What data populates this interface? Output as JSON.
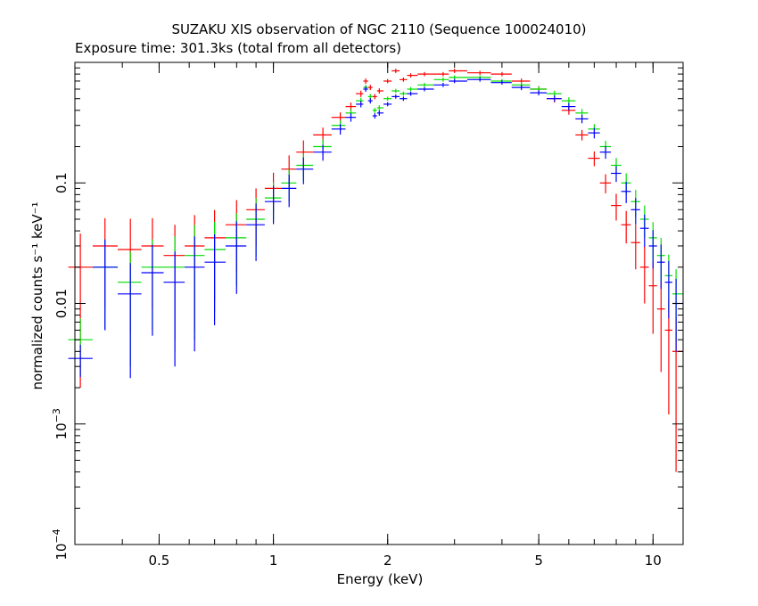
{
  "chart_data": {
    "type": "scatter",
    "title": "SUZAKU XIS observation of NGC 2110 (Sequence 100024010)",
    "subtitle": "Exposure time: 301.3ks (total from all detectors)",
    "xlabel": "Energy (keV)",
    "ylabel": "normalized counts s⁻¹ keV⁻¹",
    "xscale": "log",
    "yscale": "log",
    "xlim": [
      0.3,
      12
    ],
    "ylim": [
      0.0001,
      1
    ],
    "grid": false,
    "x_ticks": [
      {
        "value": 0.5,
        "label": "0.5"
      },
      {
        "value": 1,
        "label": "1"
      },
      {
        "value": 2,
        "label": "2"
      },
      {
        "value": 5,
        "label": "5"
      },
      {
        "value": 10,
        "label": "10"
      }
    ],
    "y_ticks": [
      {
        "value": 0.0001,
        "base": "10",
        "exp": "−4"
      },
      {
        "value": 0.001,
        "base": "10",
        "exp": "−3"
      },
      {
        "value": 0.01,
        "label": "0.01"
      },
      {
        "value": 0.1,
        "label": "0.1"
      }
    ],
    "series": [
      {
        "color": "#ff0000",
        "x": [
          0.31,
          0.36,
          0.42,
          0.48,
          0.55,
          0.62,
          0.7,
          0.8,
          0.9,
          1.0,
          1.1,
          1.2,
          1.35,
          1.5,
          1.6,
          1.7,
          1.75,
          1.8,
          1.85,
          1.9,
          2.0,
          2.1,
          2.2,
          2.3,
          2.5,
          2.8,
          3.0,
          3.5,
          4.0,
          4.5,
          5.0,
          5.5,
          6.0,
          6.5,
          7.0,
          7.5,
          8.0,
          8.5,
          9.0,
          9.5,
          10.0,
          10.5,
          11.0,
          11.5
        ],
        "y": [
          0.02,
          0.03,
          0.028,
          0.03,
          0.025,
          0.03,
          0.035,
          0.045,
          0.06,
          0.09,
          0.13,
          0.18,
          0.25,
          0.35,
          0.43,
          0.55,
          0.7,
          0.62,
          0.52,
          0.58,
          0.7,
          0.85,
          0.72,
          0.78,
          0.8,
          0.8,
          0.85,
          0.82,
          0.8,
          0.7,
          0.6,
          0.5,
          0.4,
          0.25,
          0.16,
          0.1,
          0.065,
          0.045,
          0.032,
          0.02,
          0.014,
          0.009,
          0.006,
          0.004
        ],
        "err_frac": [
          0.9,
          0.7,
          0.8,
          0.7,
          0.8,
          0.8,
          0.7,
          0.6,
          0.5,
          0.35,
          0.3,
          0.25,
          0.15,
          0.1,
          0.08,
          0.06,
          0.05,
          0.05,
          0.05,
          0.05,
          0.04,
          0.04,
          0.04,
          0.04,
          0.04,
          0.04,
          0.04,
          0.04,
          0.04,
          0.05,
          0.06,
          0.07,
          0.08,
          0.1,
          0.14,
          0.18,
          0.25,
          0.3,
          0.4,
          0.5,
          0.6,
          0.7,
          0.8,
          0.9
        ]
      },
      {
        "color": "#00dd00",
        "x": [
          0.31,
          0.36,
          0.42,
          0.48,
          0.55,
          0.62,
          0.7,
          0.8,
          0.9,
          1.0,
          1.1,
          1.2,
          1.35,
          1.5,
          1.6,
          1.7,
          1.75,
          1.8,
          1.85,
          1.9,
          2.0,
          2.1,
          2.2,
          2.3,
          2.5,
          2.8,
          3.0,
          3.5,
          4.0,
          4.5,
          5.0,
          5.5,
          6.0,
          6.5,
          7.0,
          7.5,
          8.0,
          8.5,
          9.0,
          9.5,
          10.0,
          10.5,
          11.0,
          11.5
        ],
        "y": [
          0.005,
          0.02,
          0.015,
          0.02,
          0.02,
          0.025,
          0.028,
          0.035,
          0.05,
          0.075,
          0.1,
          0.14,
          0.2,
          0.3,
          0.38,
          0.48,
          0.62,
          0.52,
          0.4,
          0.42,
          0.5,
          0.58,
          0.55,
          0.6,
          0.65,
          0.72,
          0.75,
          0.75,
          0.7,
          0.65,
          0.6,
          0.55,
          0.48,
          0.38,
          0.28,
          0.2,
          0.14,
          0.1,
          0.07,
          0.05,
          0.035,
          0.025,
          0.017,
          0.012
        ],
        "err_frac": [
          0.5,
          0.7,
          0.8,
          0.7,
          0.8,
          0.8,
          0.7,
          0.6,
          0.5,
          0.35,
          0.3,
          0.25,
          0.15,
          0.1,
          0.08,
          0.06,
          0.05,
          0.05,
          0.05,
          0.05,
          0.04,
          0.04,
          0.04,
          0.04,
          0.04,
          0.04,
          0.04,
          0.04,
          0.04,
          0.05,
          0.05,
          0.06,
          0.07,
          0.08,
          0.1,
          0.12,
          0.15,
          0.2,
          0.25,
          0.3,
          0.35,
          0.4,
          0.5,
          0.6
        ]
      },
      {
        "color": "#0000ff",
        "x": [
          0.31,
          0.36,
          0.42,
          0.48,
          0.55,
          0.62,
          0.7,
          0.8,
          0.9,
          1.0,
          1.1,
          1.2,
          1.35,
          1.5,
          1.6,
          1.7,
          1.75,
          1.8,
          1.85,
          1.9,
          2.0,
          2.1,
          2.2,
          2.3,
          2.5,
          2.8,
          3.0,
          3.5,
          4.0,
          4.5,
          5.0,
          5.5,
          6.0,
          6.5,
          7.0,
          7.5,
          8.0,
          8.5,
          9.0,
          9.5,
          10.0,
          10.5,
          11.0,
          11.5
        ],
        "y": [
          0.0035,
          0.02,
          0.012,
          0.018,
          0.015,
          0.02,
          0.022,
          0.03,
          0.045,
          0.07,
          0.09,
          0.13,
          0.18,
          0.28,
          0.35,
          0.45,
          0.6,
          0.48,
          0.36,
          0.38,
          0.45,
          0.52,
          0.5,
          0.55,
          0.6,
          0.65,
          0.7,
          0.72,
          0.68,
          0.62,
          0.56,
          0.5,
          0.43,
          0.34,
          0.26,
          0.18,
          0.12,
          0.085,
          0.06,
          0.042,
          0.03,
          0.022,
          0.015,
          0.01
        ],
        "err_frac": [
          0.3,
          0.7,
          0.8,
          0.7,
          0.8,
          0.8,
          0.7,
          0.6,
          0.5,
          0.35,
          0.3,
          0.25,
          0.15,
          0.1,
          0.08,
          0.06,
          0.05,
          0.05,
          0.05,
          0.05,
          0.04,
          0.04,
          0.04,
          0.04,
          0.04,
          0.04,
          0.04,
          0.04,
          0.04,
          0.05,
          0.05,
          0.06,
          0.07,
          0.08,
          0.1,
          0.12,
          0.15,
          0.2,
          0.25,
          0.3,
          0.35,
          0.4,
          0.5,
          0.6
        ]
      }
    ]
  }
}
